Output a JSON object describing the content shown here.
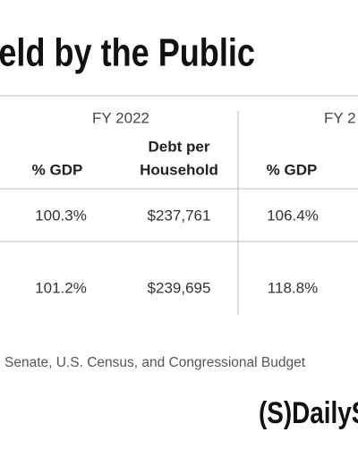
{
  "header": {
    "title": "eld by the Public"
  },
  "table": {
    "groups": [
      "FY 2022",
      "FY 2"
    ],
    "columns": [
      "% GDP",
      [
        "Debt per",
        "Household"
      ],
      "% GDP"
    ],
    "rows": [
      [
        "100.3%",
        "$237,761",
        "106.4%"
      ],
      [
        "101.2%",
        "$239,695",
        "118.8%"
      ]
    ]
  },
  "footer": {
    "source": "Senate, U.S. Census, and Congressional Budget",
    "logo": "(S)DailyS"
  }
}
